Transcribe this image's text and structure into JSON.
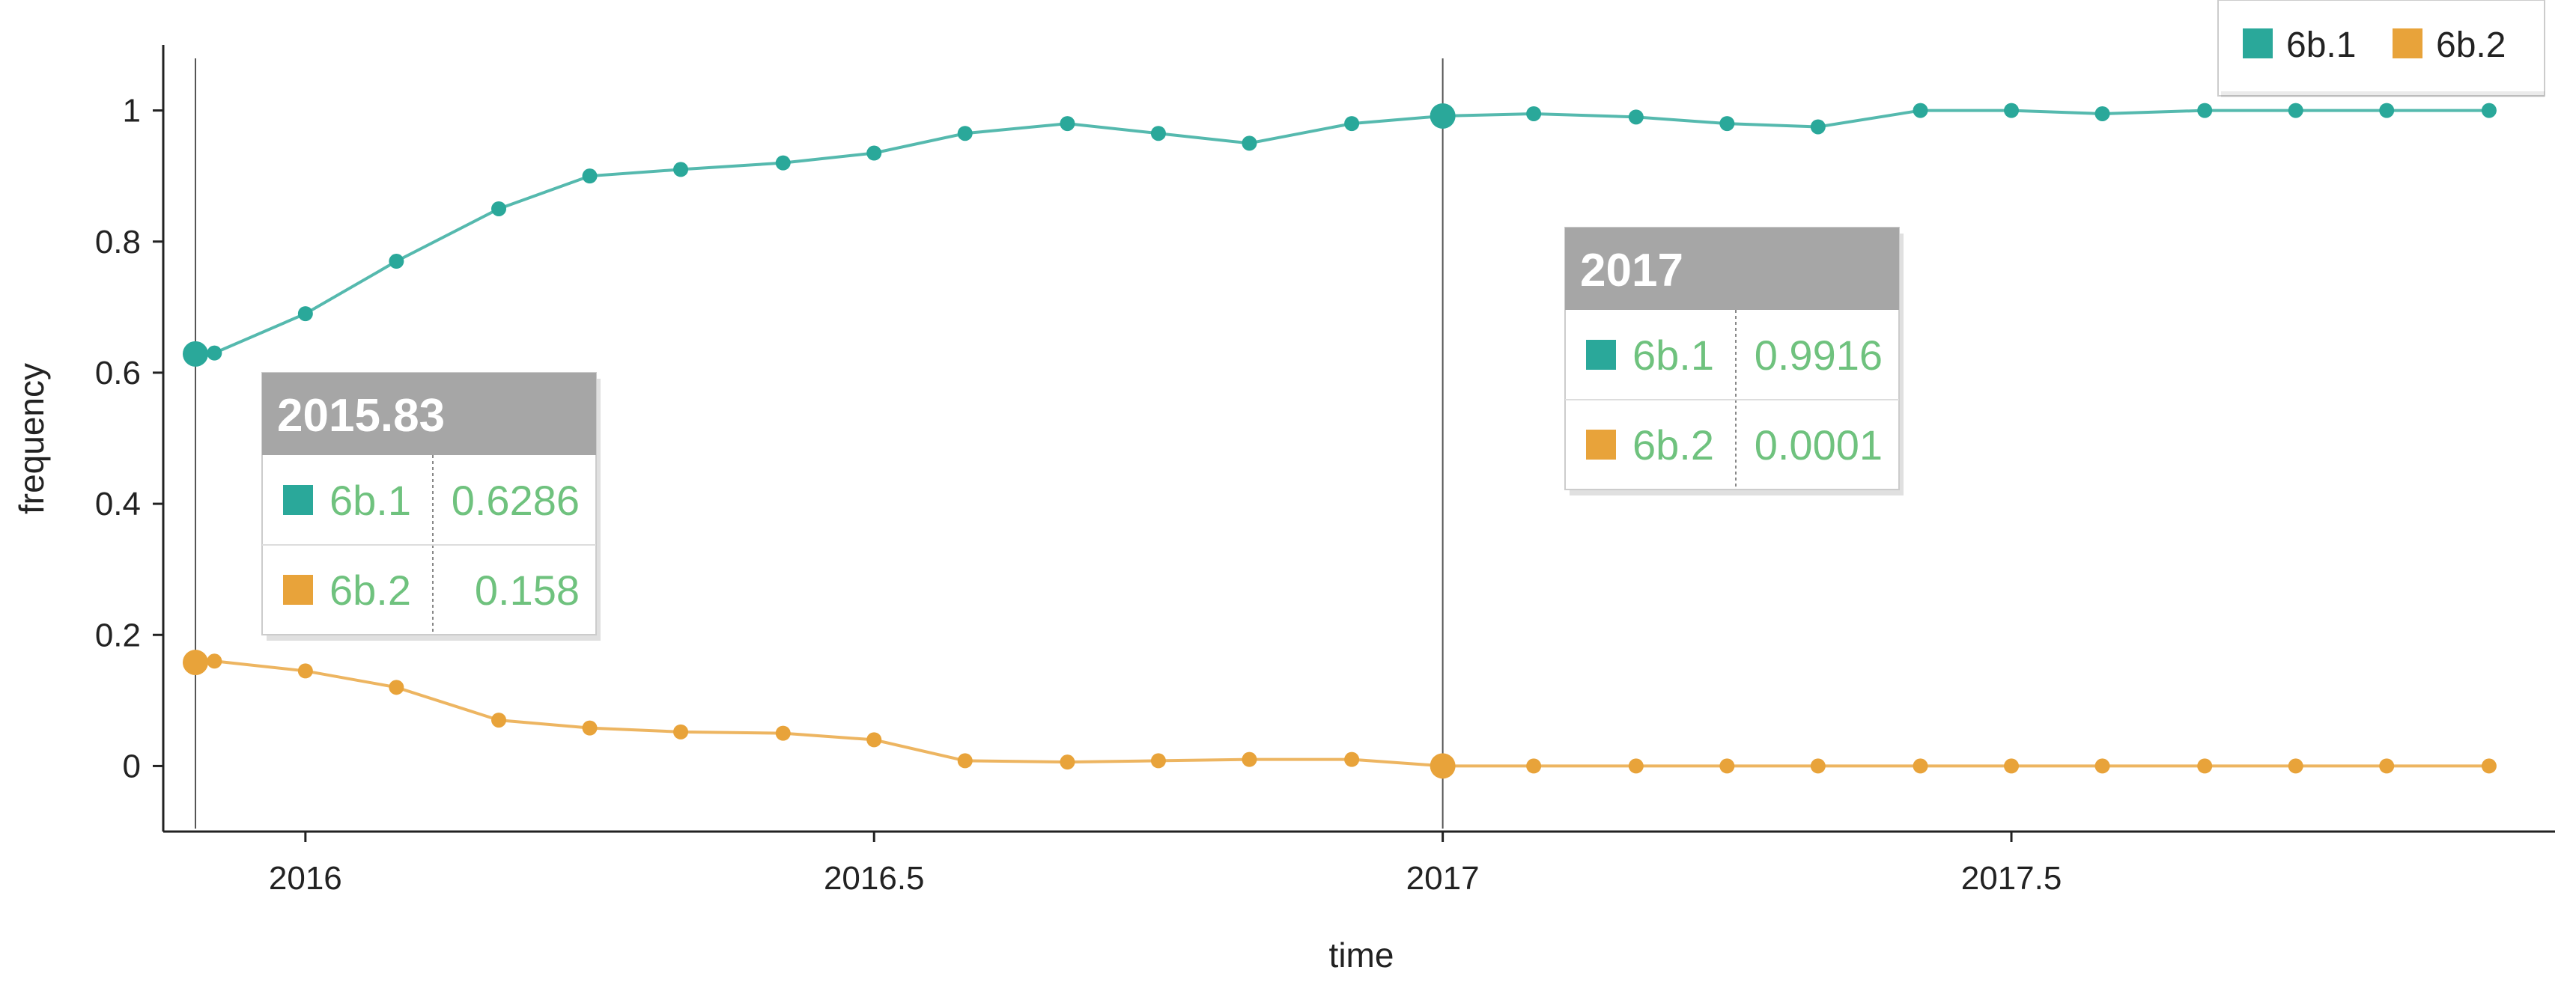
{
  "chart_data": {
    "type": "line",
    "xlabel": "time",
    "ylabel": "frequency",
    "xlim": [
      2015.83,
      2017.92
    ],
    "ylim": [
      -0.1,
      1.1
    ],
    "xticks": [
      2016,
      2016.5,
      2017,
      2017.5
    ],
    "xtick_labels": [
      "2016",
      "2016.5",
      "2017",
      "2017.5"
    ],
    "yticks": [
      0,
      0.2,
      0.4,
      0.6,
      0.8,
      1
    ],
    "ytick_labels": [
      "0",
      "0.2",
      "0.4",
      "0.6",
      "0.8",
      "1"
    ],
    "legend_position": "top-right",
    "grid": false,
    "x": [
      2015.83,
      2015.92,
      2016.0,
      2016.08,
      2016.17,
      2016.25,
      2016.33,
      2016.42,
      2016.5,
      2016.58,
      2016.67,
      2016.75,
      2016.83,
      2016.92,
      2017.0,
      2017.08,
      2017.17,
      2017.25,
      2017.33,
      2017.42,
      2017.5,
      2017.58,
      2017.67,
      2017.75,
      2017.83,
      2017.92
    ],
    "series": [
      {
        "name": "6b.1",
        "color": "#2aa89a",
        "values": [
          0.6286,
          0.63,
          0.69,
          0.77,
          0.85,
          0.9,
          0.91,
          0.92,
          0.935,
          0.965,
          0.98,
          0.965,
          0.95,
          0.98,
          0.9916,
          0.995,
          0.99,
          0.98,
          0.975,
          1.0,
          1.0,
          0.995,
          1.0,
          1.0,
          1.0,
          1.0
        ]
      },
      {
        "name": "6b.2",
        "color": "#e8a33a",
        "values": [
          0.158,
          0.16,
          0.145,
          0.12,
          0.07,
          0.058,
          0.052,
          0.05,
          0.04,
          0.008,
          0.006,
          0.008,
          0.01,
          0.01,
          0.0001,
          0.0,
          0.0,
          0.0,
          0.0,
          0.0,
          0.0,
          0.0,
          0.0,
          0.0,
          0.0,
          0.0
        ]
      }
    ],
    "hover_lines": [
      2015.83,
      2017.0
    ],
    "tooltips": [
      {
        "title": "2015.83",
        "rows": [
          {
            "name": "6b.1",
            "value": "0.6286",
            "color": "#2aa89a"
          },
          {
            "name": "6b.2",
            "value": "0.158",
            "color": "#e8a33a"
          }
        ]
      },
      {
        "title": "2017",
        "rows": [
          {
            "name": "6b.1",
            "value": "0.9916",
            "color": "#2aa89a"
          },
          {
            "name": "6b.2",
            "value": "0.0001",
            "color": "#e8a33a"
          }
        ]
      }
    ]
  }
}
